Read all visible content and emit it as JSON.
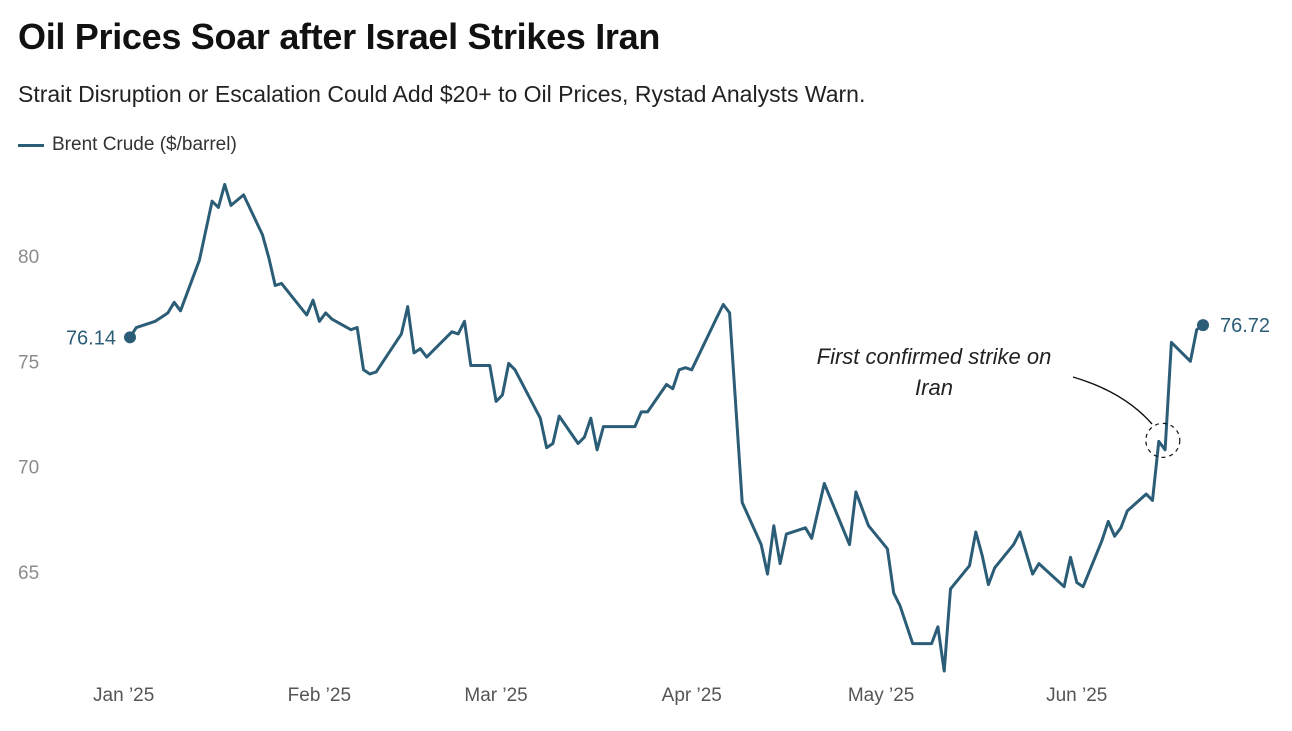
{
  "chart_data": {
    "type": "line",
    "title": "Oil Prices Soar after Israel Strikes Iran",
    "subtitle": "Strait Disruption or Escalation Could Add $20+ to Oil Prices, Rystad Analysts Warn.",
    "color": "#2b5d77",
    "ylim": [
      59.5,
      85
    ],
    "yticks": [
      65,
      70,
      75,
      80
    ],
    "grid": false,
    "legend_position": "top-left",
    "x_tick_labels": [
      "Jan ’25",
      "Feb ’25",
      "Mar ’25",
      "Apr ’25",
      "May ’25",
      "Jun ’25"
    ],
    "x_tick_dates": [
      "2025-01-01",
      "2025-02-01",
      "2025-03-01",
      "2025-04-01",
      "2025-05-01",
      "2025-06-01"
    ],
    "series": [
      {
        "name": "Brent Crude ($/barrel)",
        "start_label": "76.14",
        "end_label": "76.72",
        "points": [
          [
            "2025-01-02",
            76.14
          ],
          [
            "2025-01-03",
            76.6
          ],
          [
            "2025-01-06",
            76.9
          ],
          [
            "2025-01-07",
            77.1
          ],
          [
            "2025-01-08",
            77.3
          ],
          [
            "2025-01-09",
            77.8
          ],
          [
            "2025-01-10",
            77.4
          ],
          [
            "2025-01-13",
            79.8
          ],
          [
            "2025-01-15",
            82.6
          ],
          [
            "2025-01-16",
            82.3
          ],
          [
            "2025-01-17",
            83.4
          ],
          [
            "2025-01-18",
            82.4
          ],
          [
            "2025-01-20",
            82.9
          ],
          [
            "2025-01-23",
            81.0
          ],
          [
            "2025-01-24",
            79.9
          ],
          [
            "2025-01-25",
            78.6
          ],
          [
            "2025-01-26",
            78.7
          ],
          [
            "2025-01-30",
            77.2
          ],
          [
            "2025-01-31",
            77.9
          ],
          [
            "2025-02-01",
            76.9
          ],
          [
            "2025-02-02",
            77.3
          ],
          [
            "2025-02-03",
            77.0
          ],
          [
            "2025-02-06",
            76.5
          ],
          [
            "2025-02-07",
            76.6
          ],
          [
            "2025-02-08",
            74.6
          ],
          [
            "2025-02-09",
            74.4
          ],
          [
            "2025-02-10",
            74.5
          ],
          [
            "2025-02-14",
            76.3
          ],
          [
            "2025-02-15",
            77.6
          ],
          [
            "2025-02-16",
            75.4
          ],
          [
            "2025-02-17",
            75.6
          ],
          [
            "2025-02-18",
            75.2
          ],
          [
            "2025-02-22",
            76.4
          ],
          [
            "2025-02-23",
            76.3
          ],
          [
            "2025-02-24",
            76.9
          ],
          [
            "2025-02-25",
            74.8
          ],
          [
            "2025-02-28",
            74.8
          ],
          [
            "2025-03-01",
            73.1
          ],
          [
            "2025-03-02",
            73.4
          ],
          [
            "2025-03-03",
            74.9
          ],
          [
            "2025-03-04",
            74.6
          ],
          [
            "2025-03-08",
            72.3
          ],
          [
            "2025-03-09",
            70.9
          ],
          [
            "2025-03-10",
            71.1
          ],
          [
            "2025-03-11",
            72.4
          ],
          [
            "2025-03-14",
            71.1
          ],
          [
            "2025-03-15",
            71.4
          ],
          [
            "2025-03-16",
            72.3
          ],
          [
            "2025-03-17",
            70.8
          ],
          [
            "2025-03-18",
            71.9
          ],
          [
            "2025-03-23",
            71.9
          ],
          [
            "2025-03-24",
            72.6
          ],
          [
            "2025-03-25",
            72.6
          ],
          [
            "2025-03-28",
            73.9
          ],
          [
            "2025-03-29",
            73.7
          ],
          [
            "2025-03-30",
            74.6
          ],
          [
            "2025-03-31",
            74.7
          ],
          [
            "2025-04-01",
            74.6
          ],
          [
            "2025-04-05",
            77.1
          ],
          [
            "2025-04-06",
            77.7
          ],
          [
            "2025-04-07",
            77.3
          ],
          [
            "2025-04-08",
            72.8
          ],
          [
            "2025-04-09",
            68.3
          ],
          [
            "2025-04-12",
            66.3
          ],
          [
            "2025-04-13",
            64.9
          ],
          [
            "2025-04-14",
            67.2
          ],
          [
            "2025-04-15",
            65.4
          ],
          [
            "2025-04-16",
            66.8
          ],
          [
            "2025-04-19",
            67.1
          ],
          [
            "2025-04-20",
            66.6
          ],
          [
            "2025-04-22",
            69.2
          ],
          [
            "2025-04-26",
            66.3
          ],
          [
            "2025-04-27",
            68.8
          ],
          [
            "2025-04-29",
            67.2
          ],
          [
            "2025-05-02",
            66.1
          ],
          [
            "2025-05-03",
            64.0
          ],
          [
            "2025-05-04",
            63.4
          ],
          [
            "2025-05-06",
            61.6
          ],
          [
            "2025-05-09",
            61.6
          ],
          [
            "2025-05-10",
            62.4
          ],
          [
            "2025-05-11",
            60.3
          ],
          [
            "2025-05-12",
            64.2
          ],
          [
            "2025-05-15",
            65.3
          ],
          [
            "2025-05-16",
            66.9
          ],
          [
            "2025-05-17",
            65.8
          ],
          [
            "2025-05-18",
            64.4
          ],
          [
            "2025-05-19",
            65.2
          ],
          [
            "2025-05-22",
            66.3
          ],
          [
            "2025-05-23",
            66.9
          ],
          [
            "2025-05-25",
            64.9
          ],
          [
            "2025-05-26",
            65.4
          ],
          [
            "2025-05-30",
            64.3
          ],
          [
            "2025-05-31",
            65.7
          ],
          [
            "2025-06-01",
            64.5
          ],
          [
            "2025-06-02",
            64.3
          ],
          [
            "2025-06-05",
            66.5
          ],
          [
            "2025-06-06",
            67.4
          ],
          [
            "2025-06-07",
            66.7
          ],
          [
            "2025-06-08",
            67.1
          ],
          [
            "2025-06-09",
            67.9
          ],
          [
            "2025-06-12",
            68.7
          ],
          [
            "2025-06-13",
            68.4
          ],
          [
            "2025-06-14",
            71.2
          ],
          [
            "2025-06-15",
            70.8
          ],
          [
            "2025-06-16",
            75.9
          ],
          [
            "2025-06-19",
            75.0
          ],
          [
            "2025-06-20",
            76.5
          ],
          [
            "2025-06-21",
            76.72
          ]
        ]
      }
    ],
    "annotation": {
      "text_lines": [
        "First confirmed strike on",
        "Iran"
      ],
      "date": "2025-06-14",
      "value": 71.2
    }
  }
}
